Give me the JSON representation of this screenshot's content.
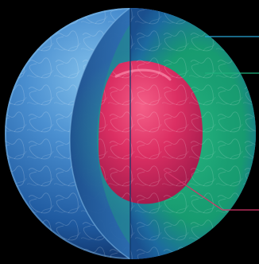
{
  "diagram": {
    "subject": "cutaway-sphere",
    "layers": [
      {
        "name": "outer-shell",
        "color": "#2f73b8"
      },
      {
        "name": "middle-layer",
        "color": "#1e9a6e"
      },
      {
        "name": "inner-core",
        "color": "#d22e62"
      }
    ],
    "callouts": [
      {
        "target": "outer-shell",
        "line_color": "#2aa7d6"
      },
      {
        "target": "middle-layer",
        "line_color": "#1fb07d"
      },
      {
        "target": "inner-core",
        "line_color": "#d5356a"
      }
    ],
    "background_color": "#000000"
  }
}
